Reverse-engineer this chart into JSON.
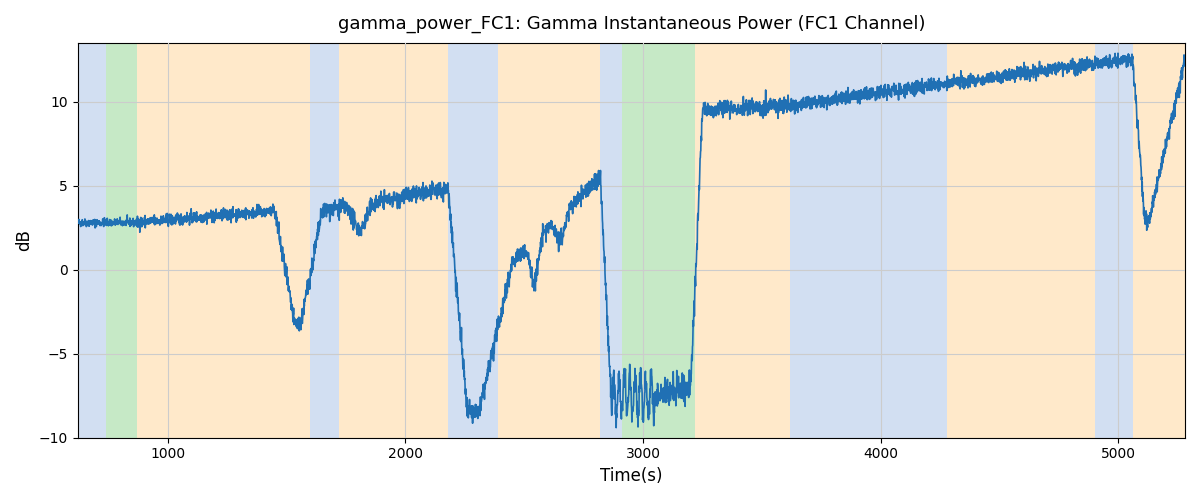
{
  "title": "gamma_power_FC1: Gamma Instantaneous Power (FC1 Channel)",
  "xlabel": "Time(s)",
  "ylabel": "dB",
  "xlim": [
    620,
    5280
  ],
  "ylim": [
    -10,
    13.5
  ],
  "yticks": [
    -10,
    -5,
    0,
    5,
    10
  ],
  "xticks": [
    1000,
    2000,
    3000,
    4000,
    5000
  ],
  "line_color": "#2070b4",
  "line_width": 1.2,
  "grid_color": "#cccccc",
  "regions": [
    {
      "start": 620,
      "end": 740,
      "color": "#aec6e8",
      "alpha": 0.55
    },
    {
      "start": 740,
      "end": 870,
      "color": "#98d898",
      "alpha": 0.55
    },
    {
      "start": 870,
      "end": 1600,
      "color": "#ffd8a0",
      "alpha": 0.55
    },
    {
      "start": 1600,
      "end": 1720,
      "color": "#aec6e8",
      "alpha": 0.55
    },
    {
      "start": 1720,
      "end": 2180,
      "color": "#ffd8a0",
      "alpha": 0.55
    },
    {
      "start": 2180,
      "end": 2390,
      "color": "#aec6e8",
      "alpha": 0.55
    },
    {
      "start": 2390,
      "end": 2820,
      "color": "#ffd8a0",
      "alpha": 0.55
    },
    {
      "start": 2820,
      "end": 2910,
      "color": "#aec6e8",
      "alpha": 0.55
    },
    {
      "start": 2910,
      "end": 3220,
      "color": "#98d898",
      "alpha": 0.55
    },
    {
      "start": 3220,
      "end": 3620,
      "color": "#ffd8a0",
      "alpha": 0.55
    },
    {
      "start": 3620,
      "end": 4280,
      "color": "#aec6e8",
      "alpha": 0.55
    },
    {
      "start": 4280,
      "end": 4900,
      "color": "#ffd8a0",
      "alpha": 0.55
    },
    {
      "start": 4900,
      "end": 5060,
      "color": "#aec6e8",
      "alpha": 0.55
    },
    {
      "start": 5060,
      "end": 5280,
      "color": "#ffd8a0",
      "alpha": 0.55
    }
  ],
  "seed": 42
}
